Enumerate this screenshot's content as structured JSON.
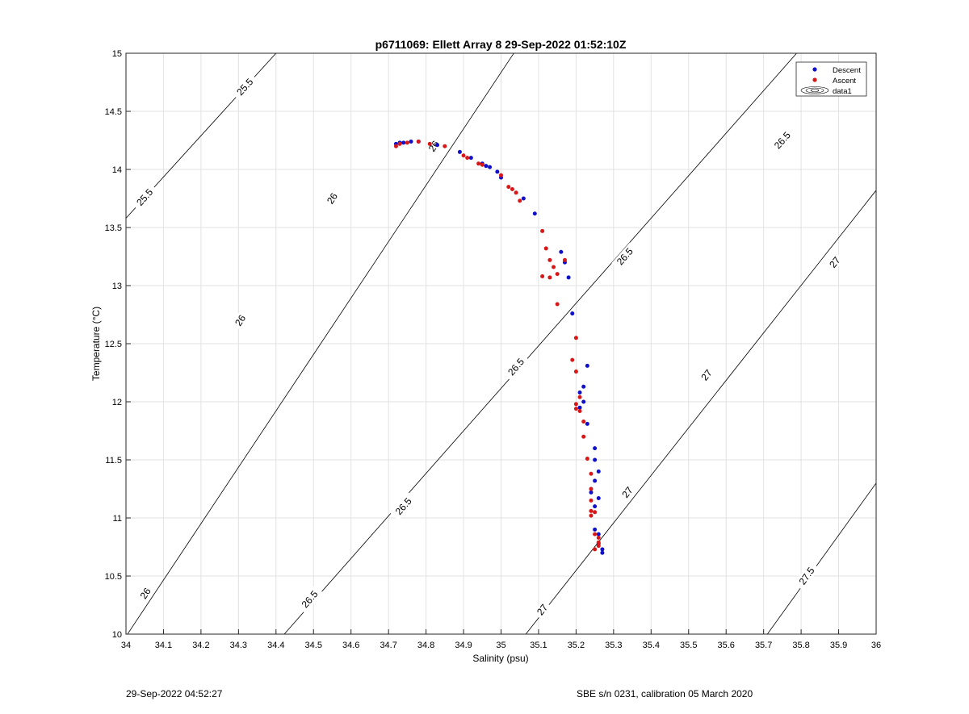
{
  "chart_data": {
    "type": "scatter",
    "title": "p6711069: Ellett Array 8 29-Sep-2022 01:52:10Z",
    "xlabel": "Salinity (psu)",
    "ylabel": "Temperature (°C)",
    "xlim": [
      34,
      36
    ],
    "ylim": [
      10,
      15
    ],
    "xticks": [
      "34",
      "34.1",
      "34.2",
      "34.3",
      "34.4",
      "34.5",
      "34.6",
      "34.7",
      "34.8",
      "34.9",
      "35",
      "35.1",
      "35.2",
      "35.3",
      "35.4",
      "35.5",
      "35.6",
      "35.7",
      "35.8",
      "35.9",
      "36"
    ],
    "yticks": [
      "10",
      "10.5",
      "11",
      "11.5",
      "12",
      "12.5",
      "13",
      "13.5",
      "14",
      "14.5",
      "15"
    ],
    "grid": true,
    "legend_position": "top-right",
    "legend": [
      "Descent",
      "Ascent",
      "data1"
    ],
    "colors": {
      "descent": "#1010c8",
      "ascent": "#d81818",
      "contour": "#000000",
      "grid": "#e2e2e2"
    },
    "contours": [
      {
        "label": "25.5",
        "points": [
          [
            34.0,
            13.58
          ],
          [
            34.4,
            15.0
          ]
        ],
        "label_at": [
          [
            34.317,
            14.71
          ],
          [
            34.05,
            13.76
          ]
        ]
      },
      {
        "label": "26",
        "points": [
          [
            34.0,
            9.98
          ],
          [
            35.034,
            15.0
          ]
        ],
        "label_at": [
          [
            34.052,
            10.35
          ],
          [
            34.305,
            12.7
          ],
          [
            34.55,
            13.75
          ],
          [
            34.821,
            14.2
          ]
        ]
      },
      {
        "label": "26.5",
        "points": [
          [
            34.422,
            10.0
          ],
          [
            35.788,
            15.0
          ]
        ],
        "label_at": [
          [
            34.49,
            10.3
          ],
          [
            34.74,
            11.1
          ],
          [
            35.04,
            12.3
          ],
          [
            35.33,
            13.25
          ],
          [
            35.75,
            14.25
          ]
        ]
      },
      {
        "label": "27",
        "points": [
          [
            35.066,
            10.0
          ],
          [
            36.0,
            13.82
          ]
        ],
        "label_at": [
          [
            35.11,
            10.21
          ],
          [
            35.337,
            11.22
          ],
          [
            35.548,
            12.23
          ],
          [
            35.89,
            13.2
          ]
        ]
      },
      {
        "label": "27.5",
        "points": [
          [
            35.71,
            10.0
          ],
          [
            36.0,
            11.3
          ]
        ],
        "label_at": [
          [
            35.815,
            10.5
          ]
        ]
      }
    ],
    "series": [
      {
        "name": "Descent",
        "x": [
          34.72,
          34.73,
          34.74,
          34.76,
          34.78,
          34.83,
          34.89,
          34.92,
          34.95,
          34.96,
          34.97,
          34.99,
          35.0,
          35.06,
          35.09,
          35.16,
          35.17,
          35.18,
          35.19,
          35.21,
          35.22,
          35.23,
          35.22,
          35.21,
          35.23,
          35.25,
          35.25,
          35.26,
          35.25,
          35.24,
          35.26,
          35.25,
          35.25,
          35.26,
          35.26,
          35.27,
          35.27
        ],
        "y": [
          14.22,
          14.23,
          14.23,
          14.24,
          14.24,
          14.21,
          14.15,
          14.1,
          14.05,
          14.03,
          14.02,
          13.98,
          13.93,
          13.75,
          13.62,
          13.29,
          13.2,
          13.07,
          12.76,
          12.08,
          12.13,
          12.31,
          12.0,
          11.95,
          11.81,
          11.6,
          11.5,
          11.4,
          11.32,
          11.22,
          11.17,
          11.1,
          10.9,
          10.86,
          10.78,
          10.73,
          10.7
        ]
      },
      {
        "name": "Ascent",
        "x": [
          34.72,
          34.73,
          34.75,
          34.78,
          34.81,
          34.85,
          34.9,
          34.91,
          34.94,
          34.95,
          35.0,
          35.02,
          35.03,
          35.04,
          35.05,
          35.11,
          35.12,
          35.13,
          35.14,
          35.11,
          35.13,
          35.15,
          35.15,
          35.17,
          35.19,
          35.2,
          35.2,
          35.21,
          35.2,
          35.21,
          35.2,
          35.22,
          35.22,
          35.23,
          35.24,
          35.24,
          35.24,
          35.24,
          35.25,
          35.24,
          35.25,
          35.26,
          35.26,
          35.26,
          35.25
        ],
        "y": [
          14.2,
          14.22,
          14.23,
          14.24,
          14.22,
          14.2,
          14.12,
          14.1,
          14.05,
          14.04,
          13.95,
          13.85,
          13.83,
          13.8,
          13.73,
          13.47,
          13.32,
          13.22,
          13.16,
          13.08,
          13.07,
          12.84,
          13.1,
          13.22,
          12.36,
          12.55,
          12.26,
          12.04,
          11.98,
          11.92,
          11.94,
          11.83,
          11.7,
          11.51,
          11.38,
          11.25,
          11.15,
          11.06,
          11.05,
          11.02,
          10.86,
          10.83,
          10.79,
          10.76,
          10.73
        ]
      }
    ]
  },
  "footer": {
    "left": "29-Sep-2022 04:52:27",
    "right": "SBE s/n 0231, calibration 05 March 2020"
  }
}
